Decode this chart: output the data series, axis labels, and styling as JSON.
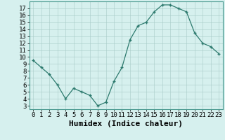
{
  "x": [
    0,
    1,
    2,
    3,
    4,
    5,
    6,
    7,
    8,
    9,
    10,
    11,
    12,
    13,
    14,
    15,
    16,
    17,
    18,
    19,
    20,
    21,
    22,
    23
  ],
  "y": [
    9.5,
    8.5,
    7.5,
    6.0,
    4.0,
    5.5,
    5.0,
    4.5,
    3.0,
    3.5,
    6.5,
    8.5,
    12.5,
    14.5,
    15.0,
    16.5,
    17.5,
    17.5,
    17.0,
    16.5,
    13.5,
    12.0,
    11.5,
    10.5
  ],
  "xlabel": "Humidex (Indice chaleur)",
  "xlim": [
    -0.5,
    23.5
  ],
  "ylim": [
    2.5,
    18
  ],
  "yticks": [
    3,
    4,
    5,
    6,
    7,
    8,
    9,
    10,
    11,
    12,
    13,
    14,
    15,
    16,
    17
  ],
  "xticks": [
    0,
    1,
    2,
    3,
    4,
    5,
    6,
    7,
    8,
    9,
    10,
    11,
    12,
    13,
    14,
    15,
    16,
    17,
    18,
    19,
    20,
    21,
    22,
    23
  ],
  "line_color": "#2d7a6e",
  "marker_color": "#2d7a6e",
  "bg_color": "#d6f0ee",
  "grid_color": "#a8ccc8",
  "xlabel_fontsize": 8,
  "tick_fontsize": 6.5
}
